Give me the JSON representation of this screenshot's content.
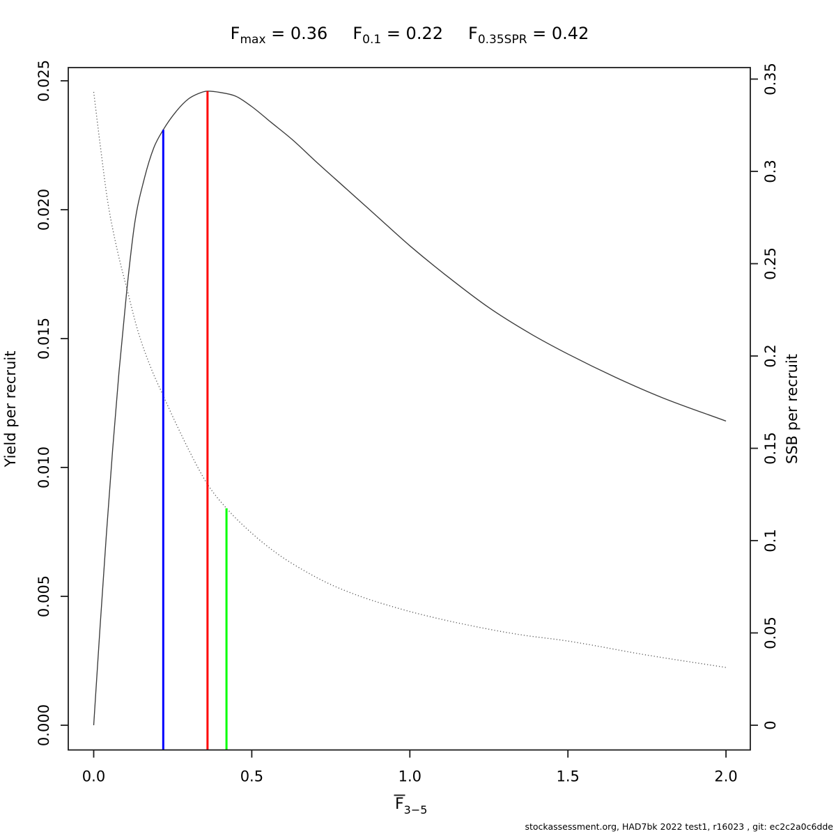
{
  "title": {
    "base": "F",
    "equals": " = ",
    "refs": [
      {
        "name": "Fmax",
        "sub": "max",
        "value": "0.36"
      },
      {
        "name": "F0.1",
        "sub": "0.1",
        "value": "0.22"
      },
      {
        "name": "F0.35SPR",
        "sub": "0.35SPR",
        "value": "0.42"
      }
    ]
  },
  "footer": "stockassessment.org, HAD7bk 2022 test1, r16023 , git: ec2c2a0c6dde",
  "chart_data": {
    "type": "line",
    "title": "Fmax = 0.36   F0.1 = 0.22   F0.35SPR = 0.42",
    "xlabel": "F̅3−5",
    "xlabel_parts": {
      "base": "F",
      "overbar": true,
      "sub": "3−5"
    },
    "ylabel_left": "Yield per recruit",
    "ylabel_right": "SSB per recruit",
    "xlim": [
      0,
      2
    ],
    "ylim_left": [
      0,
      0.0246
    ],
    "ylim_right": [
      0,
      0.343
    ],
    "grid": false,
    "x_ticks": [
      "0.0",
      "0.5",
      "1.0",
      "1.5",
      "2.0"
    ],
    "left_ticks": [
      "0.000",
      "0.005",
      "0.010",
      "0.015",
      "0.020",
      "0.025"
    ],
    "right_ticks": [
      "0",
      "0.05",
      "0.1",
      "0.15",
      "0.2",
      "0.25",
      "0.3",
      "0.35"
    ],
    "series": [
      {
        "name": "Yield per recruit",
        "axis": "left",
        "style": "solid",
        "color": "#3a3a3a",
        "x": [
          0,
          0.02,
          0.04,
          0.06,
          0.08,
          0.105,
          0.13,
          0.16,
          0.19,
          0.22,
          0.26,
          0.3,
          0.33,
          0.36,
          0.4,
          0.45,
          0.5,
          0.56,
          0.63,
          0.7,
          0.8,
          0.9,
          1.0,
          1.12,
          1.25,
          1.38,
          1.5,
          1.65,
          1.8,
          2.0
        ],
        "y": [
          0,
          0.0038,
          0.0074,
          0.0107,
          0.0137,
          0.0169,
          0.0195,
          0.0212,
          0.0224,
          0.0231,
          0.0238,
          0.0243,
          0.0245,
          0.0246,
          0.02455,
          0.0244,
          0.024,
          0.0234,
          0.0227,
          0.0219,
          0.0208,
          0.0197,
          0.0186,
          0.0174,
          0.0162,
          0.0152,
          0.0144,
          0.0135,
          0.0127,
          0.0118
        ]
      },
      {
        "name": "SSB per recruit",
        "axis": "right",
        "style": "dotted",
        "color": "#555555",
        "x": [
          0,
          0.02,
          0.045,
          0.075,
          0.105,
          0.14,
          0.18,
          0.22,
          0.26,
          0.31,
          0.36,
          0.42,
          0.5,
          0.58,
          0.66,
          0.75,
          0.85,
          0.95,
          1.05,
          1.2,
          1.35,
          1.5,
          1.75,
          2.0
        ],
        "y": [
          0.343,
          0.315,
          0.283,
          0.257,
          0.2365,
          0.2135,
          0.194,
          0.1785,
          0.1635,
          0.146,
          0.1305,
          0.1175,
          0.104,
          0.093,
          0.0843,
          0.0762,
          0.0694,
          0.064,
          0.0594,
          0.0537,
          0.049,
          0.0456,
          0.038,
          0.0313
        ]
      }
    ],
    "reference_lines": [
      {
        "name": "F0.1",
        "x": 0.22,
        "color": "#0000ff",
        "curve": "left",
        "y_value": 0.0231
      },
      {
        "name": "Fmax",
        "x": 0.36,
        "color": "#ff0000",
        "curve": "left",
        "y_value": 0.0246
      },
      {
        "name": "F0.35SPR",
        "x": 0.42,
        "color": "#00ff00",
        "curve": "right",
        "y_value": 0.1175
      }
    ]
  }
}
